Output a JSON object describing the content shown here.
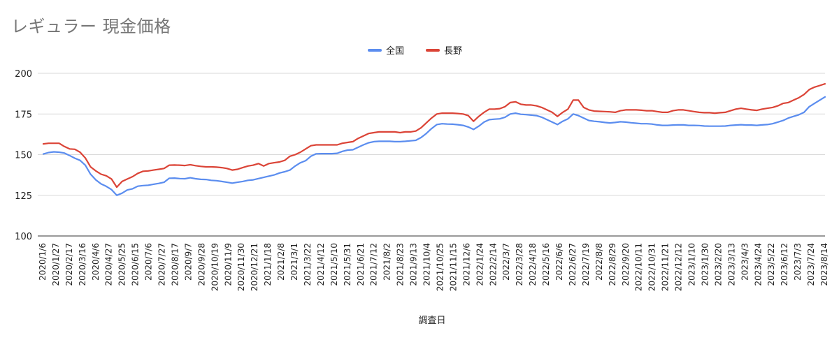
{
  "chart_data": {
    "type": "line",
    "title": "レギュラー 現金価格",
    "xlabel": "調査日",
    "ylabel": "",
    "ylim": [
      100,
      200
    ],
    "yticks": [
      100,
      125,
      150,
      175,
      200
    ],
    "grid": true,
    "legend": "top-center",
    "x_ticks": [
      "2020/1/6",
      "2020/1/27",
      "2020/2/17",
      "2020/3/16",
      "2020/4/6",
      "2020/4/27",
      "2020/5/25",
      "2020/6/15",
      "2020/7/6",
      "2020/7/27",
      "2020/8/17",
      "2020/9/7",
      "2020/9/28",
      "2020/10/19",
      "2020/11/9",
      "2020/11/30",
      "2020/12/21",
      "2021/1/18",
      "2021/2/8",
      "2021/3/1",
      "2021/3/22",
      "2021/4/12",
      "2021/5/10",
      "2021/5/31",
      "2021/6/21",
      "2021/7/12",
      "2021/8/2",
      "2021/8/23",
      "2021/9/13",
      "2021/10/4",
      "2021/10/25",
      "2021/11/15",
      "2021/12/6",
      "2022/1/24",
      "2022/2/14",
      "2022/3/7",
      "2022/3/28",
      "2022/4/18",
      "2022/5/16",
      "2022/6/6",
      "2022/6/27",
      "2022/7/19",
      "2022/8/8",
      "2022/8/29",
      "2022/9/20",
      "2022/10/11",
      "2022/10/31",
      "2022/11/21",
      "2022/12/12",
      "2023/1/10",
      "2023/1/30",
      "2023/2/20",
      "2023/3/13",
      "2023/4/3",
      "2023/4/24",
      "2023/5/22",
      "2023/6/12",
      "2023/7/3",
      "2023/7/24",
      "2023/8/14"
    ],
    "series": [
      {
        "name": "全国",
        "color": "#5b8def",
        "points": [
          [
            0,
            150.4
          ],
          [
            0.5,
            151.3
          ],
          [
            1,
            151.7
          ],
          [
            1.5,
            151.5
          ],
          [
            2,
            151.0
          ],
          [
            2.5,
            149.5
          ],
          [
            3,
            147.8
          ],
          [
            3.5,
            146.5
          ],
          [
            4,
            143.5
          ],
          [
            4.5,
            138.0
          ],
          [
            5,
            134.5
          ],
          [
            5.5,
            132.0
          ],
          [
            6,
            130.5
          ],
          [
            6.5,
            128.5
          ],
          [
            7,
            125.0
          ],
          [
            7.5,
            126.3
          ],
          [
            8,
            128.3
          ],
          [
            8.5,
            129.0
          ],
          [
            9,
            130.6
          ],
          [
            9.5,
            131.0
          ],
          [
            10,
            131.2
          ],
          [
            10.5,
            131.8
          ],
          [
            11,
            132.3
          ],
          [
            11.5,
            133.0
          ],
          [
            12,
            135.5
          ],
          [
            12.5,
            135.6
          ],
          [
            13,
            135.3
          ],
          [
            13.5,
            135.2
          ],
          [
            14,
            135.8
          ],
          [
            14.5,
            135.2
          ],
          [
            15,
            134.8
          ],
          [
            15.5,
            134.7
          ],
          [
            16,
            134.2
          ],
          [
            16.5,
            134.0
          ],
          [
            17,
            133.5
          ],
          [
            17.5,
            133.0
          ],
          [
            18,
            132.5
          ],
          [
            18.5,
            133.0
          ],
          [
            19,
            133.5
          ],
          [
            19.5,
            134.2
          ],
          [
            20,
            134.5
          ],
          [
            20.5,
            135.3
          ],
          [
            21,
            136.0
          ],
          [
            21.5,
            136.8
          ],
          [
            22,
            137.5
          ],
          [
            22.5,
            138.7
          ],
          [
            23,
            139.5
          ],
          [
            23.5,
            140.5
          ],
          [
            24,
            143.0
          ],
          [
            24.5,
            145.0
          ],
          [
            25,
            146.3
          ],
          [
            25.5,
            149.0
          ],
          [
            26,
            150.5
          ],
          [
            26.5,
            150.6
          ],
          [
            27,
            150.6
          ],
          [
            27.5,
            150.6
          ],
          [
            28,
            150.8
          ],
          [
            28.5,
            152.0
          ],
          [
            29,
            152.8
          ],
          [
            29.5,
            153.0
          ],
          [
            30,
            154.5
          ],
          [
            30.5,
            156.0
          ],
          [
            31,
            157.3
          ],
          [
            31.5,
            158.0
          ],
          [
            32,
            158.2
          ],
          [
            32.5,
            158.2
          ],
          [
            33,
            158.2
          ],
          [
            33.5,
            158.0
          ],
          [
            34,
            158.0
          ],
          [
            34.5,
            158.2
          ],
          [
            35,
            158.5
          ],
          [
            35.5,
            158.8
          ],
          [
            36,
            160.5
          ],
          [
            36.5,
            163.0
          ],
          [
            37,
            166.0
          ],
          [
            37.5,
            168.5
          ],
          [
            38,
            169.0
          ],
          [
            38.5,
            168.8
          ],
          [
            39,
            168.7
          ],
          [
            39.5,
            168.4
          ],
          [
            40,
            168.0
          ],
          [
            40.5,
            167.0
          ],
          [
            41,
            165.5
          ],
          [
            41.5,
            167.5
          ],
          [
            42,
            170.0
          ],
          [
            42.5,
            171.5
          ],
          [
            43,
            171.8
          ],
          [
            43.5,
            172.0
          ],
          [
            44,
            173.0
          ],
          [
            44.5,
            175.0
          ],
          [
            45,
            175.5
          ],
          [
            45.5,
            174.8
          ],
          [
            46,
            174.6
          ],
          [
            46.5,
            174.3
          ],
          [
            47,
            174.0
          ],
          [
            47.5,
            173.0
          ],
          [
            48,
            171.5
          ],
          [
            48.5,
            170.0
          ],
          [
            49,
            168.5
          ],
          [
            49.5,
            170.5
          ],
          [
            50,
            172.0
          ],
          [
            50.5,
            175.0
          ],
          [
            51,
            174.0
          ],
          [
            51.5,
            172.5
          ],
          [
            52,
            171.0
          ],
          [
            52.5,
            170.5
          ],
          [
            53,
            170.2
          ],
          [
            53.5,
            169.8
          ],
          [
            54,
            169.5
          ],
          [
            54.5,
            169.8
          ],
          [
            55,
            170.2
          ],
          [
            55.5,
            170.0
          ],
          [
            56,
            169.6
          ],
          [
            56.5,
            169.3
          ],
          [
            57,
            169.0
          ],
          [
            57.5,
            169.0
          ],
          [
            58,
            168.8
          ],
          [
            58.5,
            168.3
          ],
          [
            59,
            168.0
          ],
          [
            59.5,
            168.0
          ],
          [
            60,
            168.2
          ],
          [
            60.5,
            168.3
          ],
          [
            61,
            168.3
          ],
          [
            61.5,
            168.0
          ],
          [
            62,
            168.0
          ],
          [
            62.5,
            167.9
          ],
          [
            63,
            167.6
          ],
          [
            63.5,
            167.5
          ],
          [
            64,
            167.5
          ],
          [
            64.5,
            167.5
          ],
          [
            65,
            167.6
          ],
          [
            65.5,
            168.0
          ],
          [
            66,
            168.2
          ],
          [
            66.5,
            168.4
          ],
          [
            67,
            168.2
          ],
          [
            67.5,
            168.2
          ],
          [
            68,
            168.0
          ],
          [
            68.5,
            168.3
          ],
          [
            69,
            168.5
          ],
          [
            69.5,
            169.0
          ],
          [
            70,
            170.0
          ],
          [
            70.5,
            171.0
          ],
          [
            71,
            172.5
          ],
          [
            71.5,
            173.5
          ],
          [
            72,
            174.5
          ],
          [
            72.5,
            176.0
          ],
          [
            73,
            179.5
          ],
          [
            73.5,
            181.5
          ],
          [
            74,
            183.5
          ],
          [
            74.5,
            185.5
          ]
        ]
      },
      {
        "name": "長野",
        "color": "#db4437",
        "points": [
          [
            0,
            156.6
          ],
          [
            0.5,
            157.0
          ],
          [
            1,
            157.0
          ],
          [
            1.5,
            157.0
          ],
          [
            2,
            155.0
          ],
          [
            2.5,
            153.5
          ],
          [
            3,
            153.3
          ],
          [
            3.5,
            151.5
          ],
          [
            4,
            148.0
          ],
          [
            4.5,
            142.5
          ],
          [
            5,
            140.0
          ],
          [
            5.5,
            138.0
          ],
          [
            6,
            137.0
          ],
          [
            6.5,
            135.0
          ],
          [
            7,
            130.0
          ],
          [
            7.5,
            133.5
          ],
          [
            8,
            135.0
          ],
          [
            8.5,
            136.5
          ],
          [
            9,
            138.5
          ],
          [
            9.5,
            139.8
          ],
          [
            10,
            140.0
          ],
          [
            10.5,
            140.5
          ],
          [
            11,
            141.0
          ],
          [
            11.5,
            141.5
          ],
          [
            12,
            143.5
          ],
          [
            12.5,
            143.6
          ],
          [
            13,
            143.5
          ],
          [
            13.5,
            143.3
          ],
          [
            14,
            143.8
          ],
          [
            14.5,
            143.2
          ],
          [
            15,
            142.8
          ],
          [
            15.5,
            142.5
          ],
          [
            16,
            142.5
          ],
          [
            16.5,
            142.3
          ],
          [
            17,
            142.0
          ],
          [
            17.5,
            141.5
          ],
          [
            18,
            140.5
          ],
          [
            18.5,
            141.0
          ],
          [
            19,
            142.0
          ],
          [
            19.5,
            143.0
          ],
          [
            20,
            143.5
          ],
          [
            20.5,
            144.5
          ],
          [
            21,
            143.0
          ],
          [
            21.5,
            144.5
          ],
          [
            22,
            145.0
          ],
          [
            22.5,
            145.5
          ],
          [
            23,
            146.5
          ],
          [
            23.5,
            149.0
          ],
          [
            24,
            150.0
          ],
          [
            24.5,
            151.5
          ],
          [
            25,
            153.5
          ],
          [
            25.5,
            155.5
          ],
          [
            26,
            156.0
          ],
          [
            26.5,
            156.0
          ],
          [
            27,
            156.0
          ],
          [
            27.5,
            156.0
          ],
          [
            28,
            156.0
          ],
          [
            28.5,
            157.0
          ],
          [
            29,
            157.5
          ],
          [
            29.5,
            158.0
          ],
          [
            30,
            160.0
          ],
          [
            30.5,
            161.5
          ],
          [
            31,
            163.0
          ],
          [
            31.5,
            163.5
          ],
          [
            32,
            164.0
          ],
          [
            32.5,
            164.0
          ],
          [
            33,
            164.0
          ],
          [
            33.5,
            164.0
          ],
          [
            34,
            163.5
          ],
          [
            34.5,
            164.0
          ],
          [
            35,
            164.0
          ],
          [
            35.5,
            164.5
          ],
          [
            36,
            166.5
          ],
          [
            36.5,
            169.5
          ],
          [
            37,
            172.5
          ],
          [
            37.5,
            175.0
          ],
          [
            38,
            175.5
          ],
          [
            38.5,
            175.5
          ],
          [
            39,
            175.5
          ],
          [
            39.5,
            175.3
          ],
          [
            40,
            175.0
          ],
          [
            40.5,
            174.0
          ],
          [
            41,
            170.5
          ],
          [
            41.5,
            173.5
          ],
          [
            42,
            176.0
          ],
          [
            42.5,
            178.0
          ],
          [
            43,
            178.0
          ],
          [
            43.5,
            178.3
          ],
          [
            44,
            179.5
          ],
          [
            44.5,
            182.0
          ],
          [
            45,
            182.5
          ],
          [
            45.5,
            181.0
          ],
          [
            46,
            180.5
          ],
          [
            46.5,
            180.5
          ],
          [
            47,
            180.0
          ],
          [
            47.5,
            179.0
          ],
          [
            48,
            177.5
          ],
          [
            48.5,
            176.0
          ],
          [
            49,
            173.5
          ],
          [
            49.5,
            176.0
          ],
          [
            50,
            178.0
          ],
          [
            50.5,
            183.5
          ],
          [
            51,
            183.5
          ],
          [
            51.5,
            179.0
          ],
          [
            52,
            177.5
          ],
          [
            52.5,
            176.8
          ],
          [
            53,
            176.6
          ],
          [
            53.5,
            176.5
          ],
          [
            54,
            176.3
          ],
          [
            54.5,
            176.0
          ],
          [
            55,
            177.0
          ],
          [
            55.5,
            177.5
          ],
          [
            56,
            177.5
          ],
          [
            56.5,
            177.5
          ],
          [
            57,
            177.3
          ],
          [
            57.5,
            177.0
          ],
          [
            58,
            177.0
          ],
          [
            58.5,
            176.5
          ],
          [
            59,
            176.0
          ],
          [
            59.5,
            176.0
          ],
          [
            60,
            177.0
          ],
          [
            60.5,
            177.5
          ],
          [
            61,
            177.5
          ],
          [
            61.5,
            177.0
          ],
          [
            62,
            176.5
          ],
          [
            62.5,
            176.0
          ],
          [
            63,
            175.8
          ],
          [
            63.5,
            175.8
          ],
          [
            64,
            175.5
          ],
          [
            64.5,
            175.8
          ],
          [
            65,
            176.0
          ],
          [
            65.5,
            177.0
          ],
          [
            66,
            178.0
          ],
          [
            66.5,
            178.5
          ],
          [
            67,
            178.0
          ],
          [
            67.5,
            177.5
          ],
          [
            68,
            177.2
          ],
          [
            68.5,
            178.0
          ],
          [
            69,
            178.5
          ],
          [
            69.5,
            179.0
          ],
          [
            70,
            180.0
          ],
          [
            70.5,
            181.5
          ],
          [
            71,
            182.0
          ],
          [
            71.5,
            183.5
          ],
          [
            72,
            185.0
          ],
          [
            72.5,
            187.0
          ],
          [
            73,
            190.0
          ],
          [
            73.5,
            191.5
          ],
          [
            74,
            192.5
          ],
          [
            74.5,
            193.5
          ]
        ]
      }
    ]
  }
}
